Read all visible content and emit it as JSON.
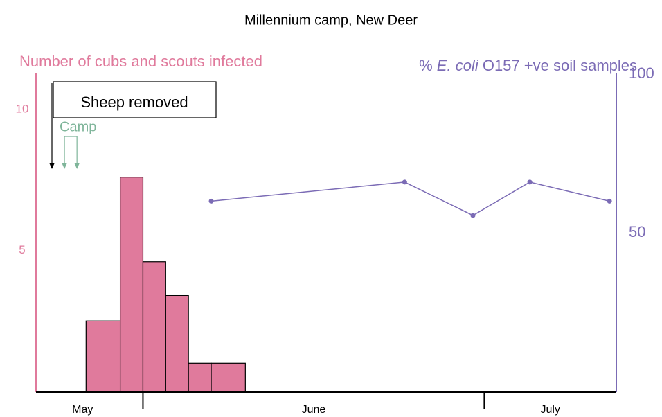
{
  "chart_data": {
    "type": "histogram",
    "title": "Millennium camp, New Deer",
    "ylabel": "Number of cubs and scouts infected",
    "y2label_parts": [
      "% ",
      "E. coli",
      " O157 +ve soil samples"
    ],
    "bins": [
      27,
      30,
      32,
      34,
      36,
      38,
      41
    ],
    "values": [
      2.5,
      7.6,
      4.6,
      3.4,
      1,
      1
    ],
    "color": "#e07a9c",
    "line": {
      "x": [
        38,
        55,
        61,
        66,
        73
      ],
      "values": [
        60,
        66,
        55.5,
        66,
        60
      ],
      "color": "#7b6bb5",
      "axis": "y2"
    },
    "xlim": [
      22.6,
      73.6
    ],
    "xticks": [
      32,
      62
    ],
    "months": [
      "May",
      "June",
      "July"
    ],
    "ylim": [
      0,
      11.3
    ],
    "yticks": [
      5,
      10
    ],
    "y2lim": [
      0,
      100.5
    ],
    "y2ticks": [
      50,
      100
    ],
    "annotations": [
      {
        "text": "Sheep removed",
        "x": 24,
        "color": "#000000"
      },
      {
        "text": "Camp",
        "x": [
          25.1,
          26.2
        ],
        "color": "#7fb59a"
      }
    ]
  }
}
